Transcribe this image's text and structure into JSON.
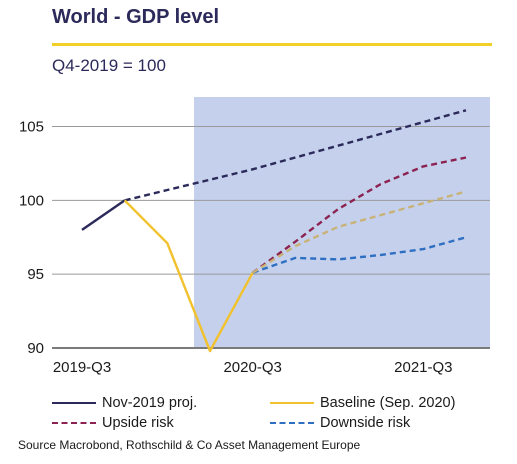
{
  "header": {
    "title": "World - GDP level",
    "subtitle": "Q4-2019 = 100"
  },
  "source": "Source Macrobond, Rothschild & Co Asset Management Europe",
  "chart_data": {
    "type": "line",
    "x": [
      "2019-Q3",
      "2019-Q4",
      "2020-Q1",
      "2020-Q2",
      "2020-Q3",
      "2020-Q4",
      "2021-Q1",
      "2021-Q2",
      "2021-Q3",
      "2021-Q4"
    ],
    "x_tick_labels": [
      "2019-Q3",
      "2020-Q3",
      "2021-Q3"
    ],
    "ylim": [
      90,
      107
    ],
    "y_ticks": [
      90,
      95,
      100,
      105
    ],
    "grid": true,
    "shaded_region": {
      "from": "2020-Q2",
      "to": "2021-Q4",
      "color": "#c5d1ec"
    },
    "series": [
      {
        "name": "Nov-2019 proj.",
        "color": "#2b2a5a",
        "style": "solid",
        "values": [
          98.0,
          100.0,
          null,
          null,
          null,
          null,
          null,
          null,
          null,
          null
        ]
      },
      {
        "name": "",
        "color": "#2b2a5a",
        "style": "dashed",
        "values": [
          null,
          100.0,
          100.7,
          101.4,
          102.1,
          102.9,
          103.7,
          104.5,
          105.3,
          106.1
        ]
      },
      {
        "name": "Baseline (Sep. 2020)",
        "color": "#f2c12e",
        "style": "solid",
        "values": [
          null,
          100.0,
          97.1,
          89.8,
          95.1,
          null,
          null,
          null,
          null,
          null
        ]
      },
      {
        "name": "Upside risk",
        "color": "#8b2252",
        "style": "dashed",
        "values": [
          null,
          null,
          null,
          null,
          95.1,
          97.2,
          99.4,
          101.1,
          102.3,
          102.9
        ]
      },
      {
        "name": "Downside risk",
        "color": "#2e6fc2",
        "style": "dashed",
        "values": [
          null,
          null,
          null,
          null,
          95.1,
          96.1,
          96.0,
          96.3,
          96.7,
          97.5
        ]
      },
      {
        "name": "",
        "color": "#c8b277",
        "style": "dashed",
        "values": [
          null,
          null,
          null,
          null,
          95.1,
          96.9,
          98.2,
          99.0,
          99.8,
          100.6
        ]
      }
    ]
  },
  "legend": [
    {
      "label": "Nov-2019 proj.",
      "color": "#2b2a5a",
      "style": "solid"
    },
    {
      "label": "Baseline (Sep. 2020)",
      "color": "#f2c12e",
      "style": "solid"
    },
    {
      "label": "Upside risk",
      "color": "#8b2252",
      "style": "dashed"
    },
    {
      "label": "Downside risk",
      "color": "#2e6fc2",
      "style": "dashed"
    }
  ]
}
